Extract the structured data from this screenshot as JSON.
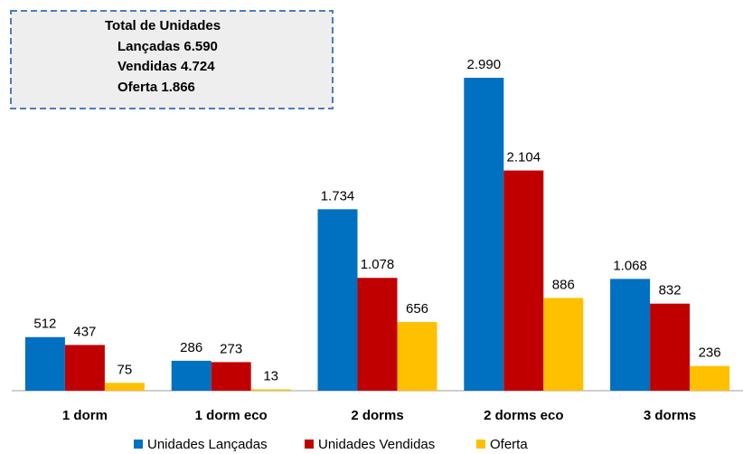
{
  "chart_data": {
    "type": "bar",
    "annotations": [
      "Total de Unidades",
      "Lançadas 6.590",
      "Vendidas 4.724",
      "Oferta 1.866"
    ],
    "categories": [
      "1 dorm",
      "1 dorm eco",
      "2 dorms",
      "2 dorms eco",
      "3 dorms"
    ],
    "series": [
      {
        "name": "Unidades Lançadas",
        "color": "#0070c0",
        "values": [
          512,
          286,
          1734,
          2990,
          1068
        ],
        "value_labels": [
          "512",
          "286",
          "1.734",
          "2.990",
          "1.068"
        ]
      },
      {
        "name": "Unidades Vendidas",
        "color": "#c00000",
        "values": [
          437,
          273,
          1078,
          2104,
          832
        ],
        "value_labels": [
          "437",
          "273",
          "1.078",
          "2.104",
          "832"
        ]
      },
      {
        "name": "Oferta",
        "color": "#ffc000",
        "values": [
          75,
          13,
          656,
          886,
          236
        ],
        "value_labels": [
          "75",
          "13",
          "656",
          "886",
          "236"
        ]
      }
    ],
    "legend": "bottom"
  }
}
